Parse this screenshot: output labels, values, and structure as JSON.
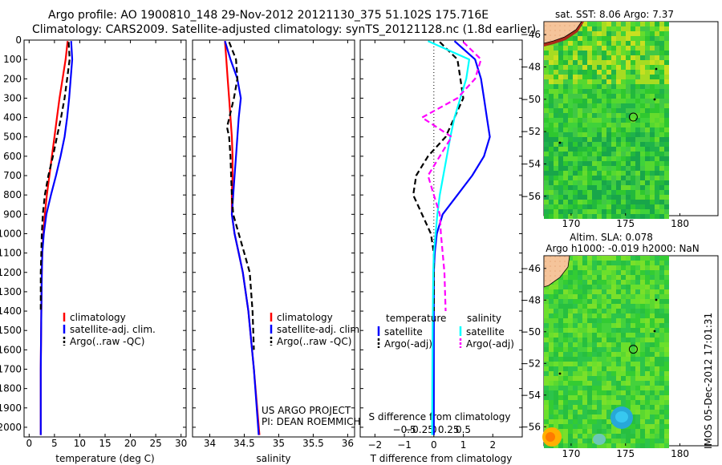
{
  "title": {
    "line1": "Argo profile: AO 1900810_148 29-Nov-2012 20121130_375 51.102S 175.716E",
    "line2": "Climatology: CARS2009. Satellite-adjusted climatology: synTS_20121128.nc (1.8d earlier)"
  },
  "colors": {
    "climatology": "#ff0000",
    "satellite": "#0000ff",
    "argo": "#000000",
    "s_satellite": "#00ffff",
    "s_argo": "#ff00ff"
  },
  "chart_data": [
    {
      "type": "line",
      "name": "temperature-panel",
      "xlabel": "temperature (deg C)",
      "ylim": [
        0,
        2050
      ],
      "xlim": [
        -1,
        31
      ],
      "xticks": [
        0,
        5,
        10,
        15,
        20,
        25,
        30
      ],
      "yticks": [
        0,
        100,
        200,
        300,
        400,
        500,
        600,
        700,
        800,
        900,
        1000,
        1100,
        1200,
        1300,
        1400,
        1500,
        1600,
        1700,
        1800,
        1900,
        2000
      ],
      "legend": [
        "climatology",
        "satellite-adj. clim.",
        "Argo(..raw -QC)"
      ],
      "series": [
        {
          "name": "climatology",
          "color": "#ff0000",
          "style": "solid",
          "x": [
            7.6,
            7.2,
            6.6,
            6.0,
            5.5,
            5.0,
            4.5,
            4.0,
            3.5,
            3.1,
            2.8,
            2.6,
            2.5,
            2.4,
            2.3,
            2.3
          ],
          "y": [
            5,
            100,
            200,
            300,
            400,
            500,
            600,
            700,
            800,
            900,
            1000,
            1100,
            1200,
            1400,
            1700,
            2040
          ]
        },
        {
          "name": "satellite-adj. clim.",
          "color": "#0000ff",
          "style": "solid",
          "x": [
            8.3,
            8.5,
            8.2,
            7.9,
            7.5,
            7.0,
            6.2,
            5.3,
            4.3,
            3.4,
            2.9,
            2.6,
            2.5,
            2.4,
            2.3,
            2.3
          ],
          "y": [
            5,
            100,
            200,
            300,
            400,
            500,
            600,
            700,
            800,
            900,
            1000,
            1100,
            1200,
            1400,
            1700,
            2040
          ]
        },
        {
          "name": "Argo(..raw -QC)",
          "color": "#000000",
          "style": "dashed",
          "x": [
            7.8,
            8.0,
            7.5,
            7.0,
            6.3,
            5.5,
            4.7,
            3.8,
            3.1,
            2.7,
            2.5,
            2.4,
            2.3,
            2.3
          ],
          "y": [
            10,
            100,
            200,
            300,
            400,
            500,
            600,
            700,
            800,
            900,
            1000,
            1100,
            1200,
            1400
          ]
        }
      ]
    },
    {
      "type": "line",
      "name": "salinity-panel",
      "xlabel": "salinity",
      "ylim": [
        0,
        2050
      ],
      "xlim": [
        33.75,
        36.1
      ],
      "xticks": [
        34,
        34.5,
        35,
        35.5,
        36
      ],
      "xticklabels": [
        "34",
        "34.5",
        "35",
        "35.5",
        "36"
      ],
      "legend": [
        "climatology",
        "satellite-adj. clim.",
        "Argo(..raw -QC)"
      ],
      "annotation": [
        "US ARGO PROJECT",
        "PI: DEAN ROEMMICH"
      ],
      "series": [
        {
          "name": "climatology",
          "color": "#ff0000",
          "style": "solid",
          "x": [
            34.22,
            34.24,
            34.26,
            34.28,
            34.3,
            34.32,
            34.33,
            34.33,
            34.32,
            34.32,
            34.36,
            34.42,
            34.48,
            34.56,
            34.64,
            34.72
          ],
          "y": [
            5,
            100,
            200,
            300,
            400,
            500,
            600,
            700,
            800,
            900,
            1000,
            1100,
            1200,
            1400,
            1700,
            2040
          ]
        },
        {
          "name": "satellite-adj. clim.",
          "color": "#0000ff",
          "style": "solid",
          "x": [
            34.22,
            34.3,
            34.4,
            34.45,
            34.42,
            34.4,
            34.38,
            34.36,
            34.34,
            34.32,
            34.36,
            34.42,
            34.48,
            34.56,
            34.64,
            34.71
          ],
          "y": [
            5,
            100,
            200,
            300,
            400,
            500,
            600,
            700,
            800,
            900,
            1000,
            1100,
            1200,
            1400,
            1700,
            2040
          ]
        },
        {
          "name": "Argo(..raw -QC)",
          "color": "#000000",
          "style": "dashed",
          "x": [
            34.28,
            34.38,
            34.4,
            34.35,
            34.25,
            34.28,
            34.3,
            34.31,
            34.32,
            34.34,
            34.42,
            34.5,
            34.58,
            34.62,
            34.64
          ],
          "y": [
            10,
            100,
            200,
            300,
            450,
            500,
            600,
            700,
            800,
            900,
            1000,
            1100,
            1200,
            1400,
            1600
          ]
        }
      ]
    },
    {
      "type": "line",
      "name": "difference-panel",
      "xlabel": "T difference from climatology",
      "xlabel2": "S difference from climatology",
      "ylim": [
        0,
        2050
      ],
      "xlim": [
        -2.5,
        3
      ],
      "xticks": [
        -2,
        -1,
        0,
        1,
        2
      ],
      "xticklabels": [
        "−2",
        "−1",
        "0",
        "1",
        "2"
      ],
      "xticks2": [
        -0.5,
        -0.25,
        0,
        0.25,
        0.5
      ],
      "xticklabels2": [
        "−0.5",
        "−0.25",
        "0",
        "0.25",
        "0.5"
      ],
      "legend_left_title": "temperature",
      "legend_right_title": "salinity",
      "legend": [
        "satellite",
        "Argo(-adj)",
        "satellite",
        "Argo(-adj)"
      ],
      "series": [
        {
          "name": "satellite",
          "color": "#0000ff",
          "style": "solid",
          "x": [
            0.7,
            1.4,
            1.6,
            1.7,
            1.8,
            1.9,
            1.7,
            1.3,
            0.8,
            0.3,
            0.1,
            0.03,
            0.0,
            0.0,
            0.0
          ],
          "y": [
            5,
            100,
            200,
            300,
            400,
            500,
            600,
            700,
            800,
            900,
            1000,
            1100,
            1200,
            1500,
            2040
          ]
        },
        {
          "name": "Argo(-adj)",
          "color": "#000000",
          "style": "dashed",
          "x": [
            0.2,
            0.8,
            0.9,
            1.0,
            0.7,
            0.4,
            -0.2,
            -0.6,
            -0.7,
            -0.4,
            -0.1,
            0.0,
            0.0,
            0.0
          ],
          "y": [
            10,
            100,
            200,
            300,
            400,
            500,
            600,
            700,
            800,
            900,
            1000,
            1100,
            1200,
            1400
          ]
        },
        {
          "name": "satellite",
          "color": "#00ffff",
          "style": "solid",
          "x": [
            -0.1,
            0.6,
            0.55,
            0.45,
            0.35,
            0.28,
            0.22,
            0.16,
            0.1,
            0.06,
            0.03,
            0.0,
            -0.01,
            -0.02,
            -0.03
          ],
          "y": [
            5,
            100,
            200,
            300,
            400,
            500,
            600,
            700,
            800,
            900,
            1000,
            1100,
            1200,
            1500,
            2040
          ]
        },
        {
          "name": "Argo(-adj)",
          "color": "#ff00ff",
          "style": "dashed",
          "x": [
            0.5,
            0.8,
            0.7,
            0.4,
            -0.2,
            0.3,
            0.1,
            -0.1,
            0.0,
            0.1,
            0.12,
            0.15,
            0.18,
            0.2
          ],
          "y": [
            10,
            100,
            200,
            300,
            400,
            500,
            600,
            700,
            800,
            900,
            1000,
            1100,
            1200,
            1400
          ]
        }
      ]
    },
    {
      "type": "heatmap",
      "name": "sst-map",
      "title": "sat. SST: 8.06 Argo: 7.37",
      "xlim": [
        167.5,
        183.5
      ],
      "ylim": [
        -57.2,
        -45.2
      ],
      "xticks": [
        170,
        175,
        180
      ],
      "yticks": [
        -46,
        -48,
        -50,
        -52,
        -54,
        -56
      ],
      "marker": {
        "lon": 175.716,
        "lat": -51.102
      }
    },
    {
      "type": "heatmap",
      "name": "sla-map",
      "title": "Altim. SLA: 0.078",
      "title2": "Argo h1000: -0.019 h2000: NaN",
      "xlim": [
        167.5,
        183.5
      ],
      "ylim": [
        -57.2,
        -45.2
      ],
      "xticks": [
        170,
        175,
        180
      ],
      "yticks": [
        -46,
        -48,
        -50,
        -52,
        -54,
        -56
      ],
      "marker": {
        "lon": 175.716,
        "lat": -51.102
      }
    }
  ],
  "stamp": "IMOS 05-Dec-2012 17:01:31"
}
